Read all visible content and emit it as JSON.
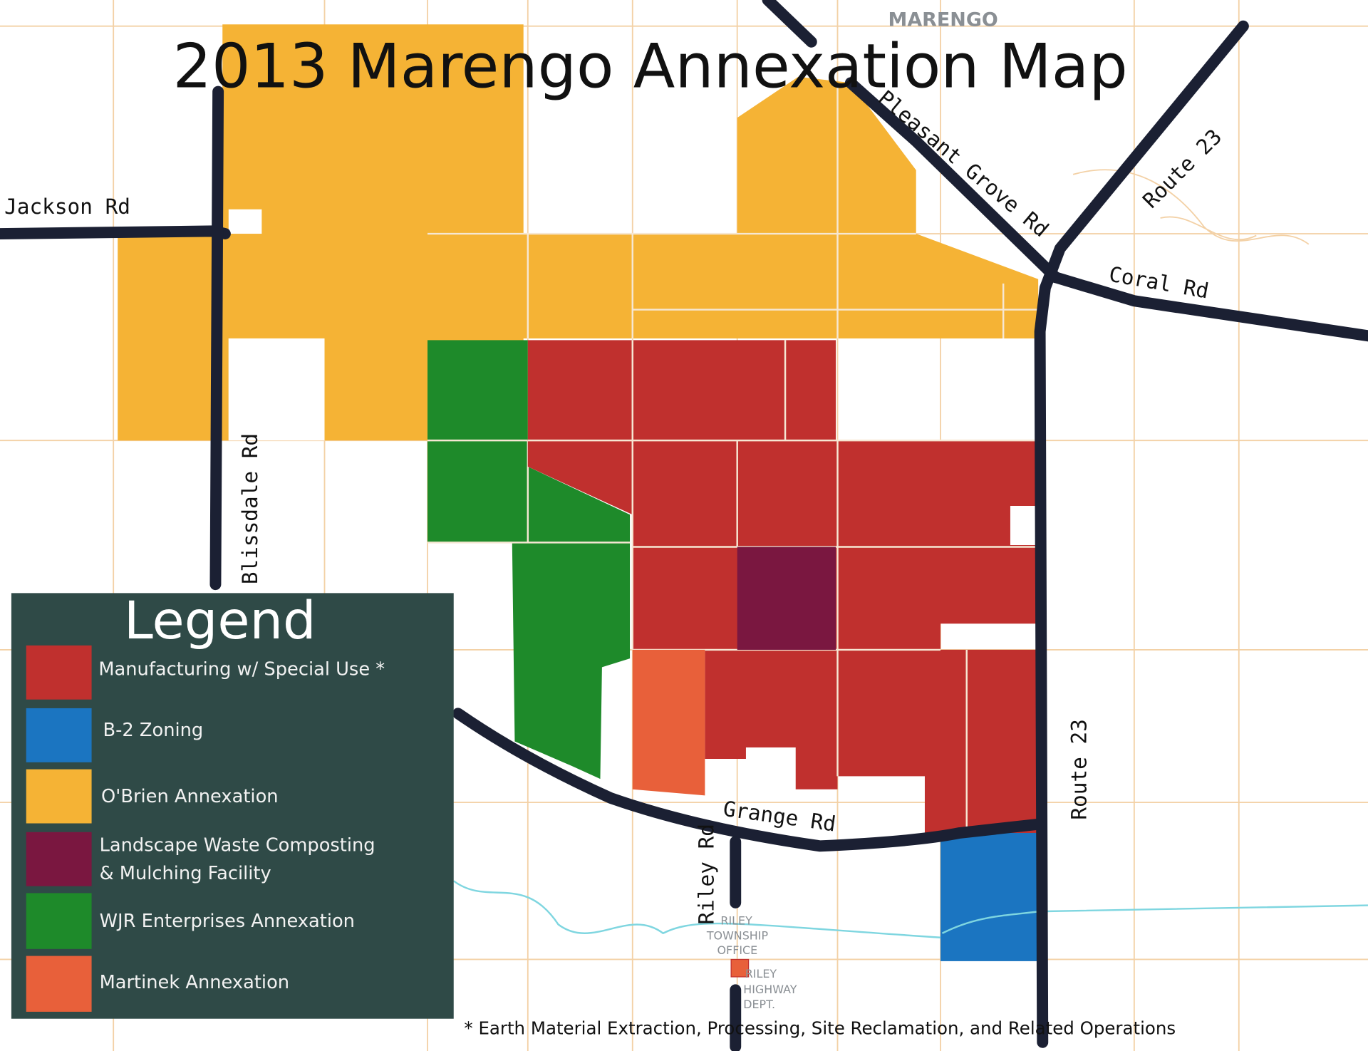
{
  "title": "2013 Marengo Annexation Map",
  "town_label": "MARENGO",
  "roads": {
    "jackson": "Jackson Rd",
    "blissdale": "Blissdale Rd",
    "pleasant_grove": "Pleasant Grove Rd",
    "route23_top": "Route 23",
    "route23_bottom": "Route 23",
    "coral": "Coral Rd",
    "grange": "Grange Rd",
    "riley": "Riley Rd"
  },
  "places": {
    "township_office": [
      "RILEY",
      "TOWNSHIP",
      "OFFICE"
    ],
    "highway_dept": [
      "RILEY",
      "HIGHWAY",
      "DEPT."
    ]
  },
  "legend": {
    "title": "Legend",
    "items": [
      {
        "label": "Manufacturing w/ Special Use *",
        "color": "#c0302e"
      },
      {
        "label": "B-2 Zoning",
        "color": "#1b75c1"
      },
      {
        "label": "O'Brien Annexation",
        "color": "#f5b335"
      },
      {
        "label": "Landscape Waste Composting",
        "label2": "& Mulching Facility",
        "color": "#7a1740"
      },
      {
        "label": "WJR Enterprises Annexation",
        "color": "#1e8a2a"
      },
      {
        "label": "Martinek Annexation",
        "color": "#e8603a"
      }
    ],
    "background": "#2f4a47"
  },
  "footnote": "* Earth Material Extraction, Processing, Site Reclamation, and Related Operations"
}
